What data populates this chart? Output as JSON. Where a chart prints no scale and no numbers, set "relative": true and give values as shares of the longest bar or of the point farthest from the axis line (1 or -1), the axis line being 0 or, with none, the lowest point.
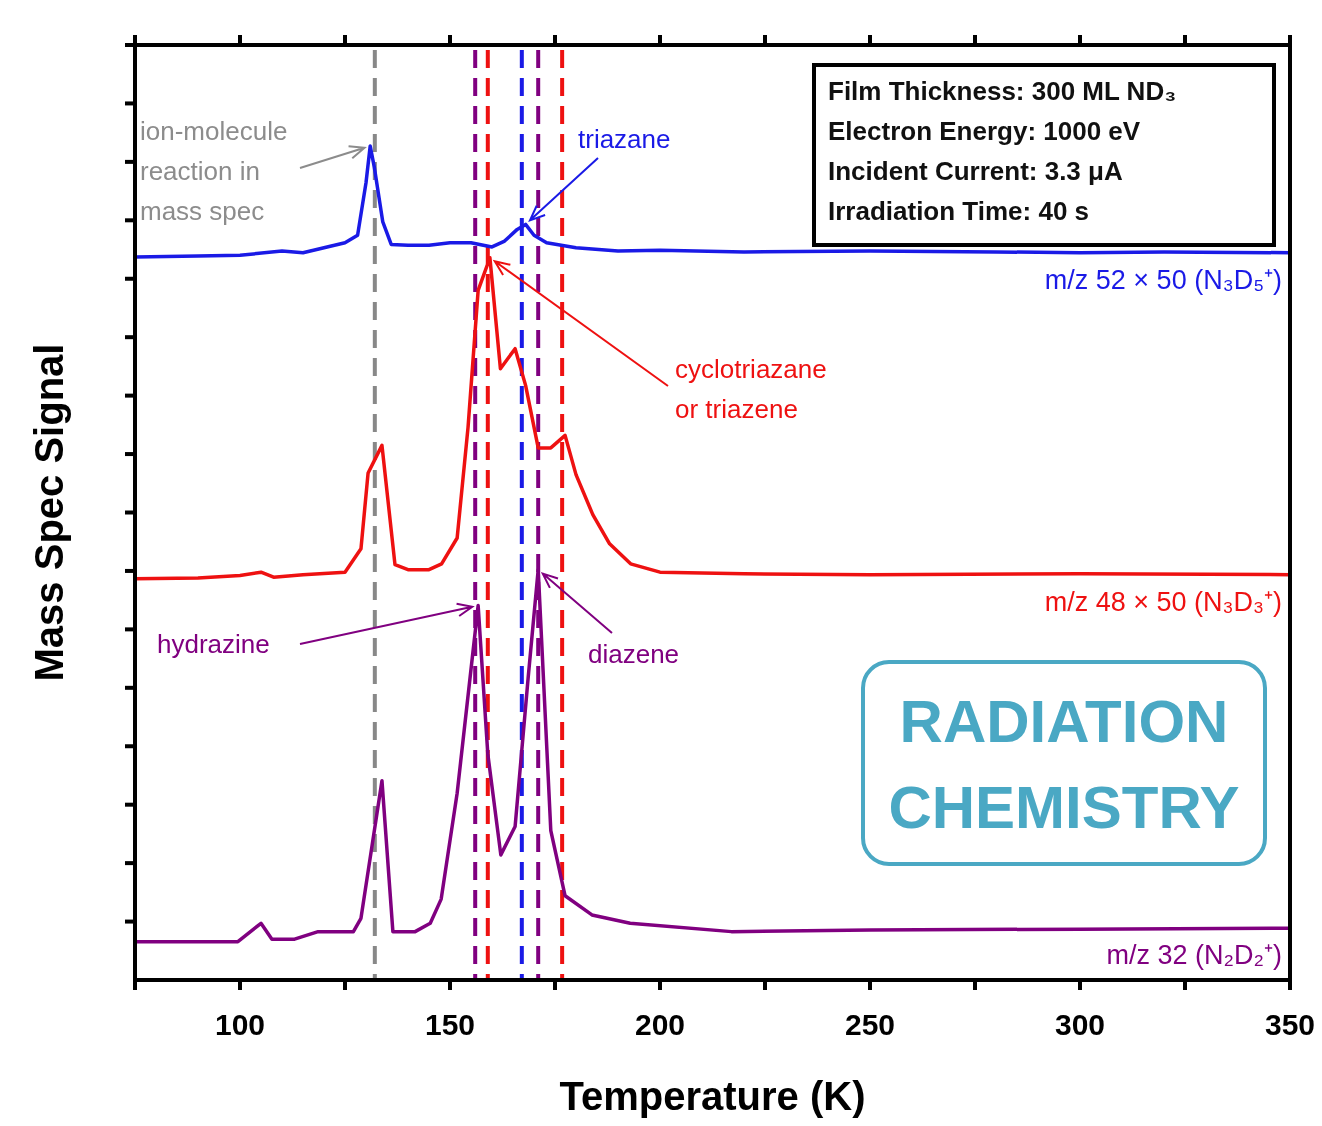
{
  "chart_data": {
    "type": "line",
    "xlabel": "Temperature (K)",
    "ylabel": "Mass Spec Signal",
    "relative": true,
    "xlim": [
      75,
      350
    ],
    "xticks": [
      {
        "value": 75,
        "label": null
      },
      100,
      {
        "value": 125,
        "label": null
      },
      150,
      {
        "value": 175,
        "label": null
      },
      200,
      {
        "value": 225,
        "label": null
      },
      250,
      {
        "value": 275,
        "label": null
      },
      300,
      {
        "value": 325,
        "label": null
      },
      350
    ],
    "tick_labels": "x",
    "grid": false,
    "line_style": "solid",
    "series": [
      {
        "name": "m/z 52 × 50 (N₃D₅⁺)",
        "color": "#1a1ae6",
        "x": [
          75,
          90,
          100,
          110,
          115,
          120,
          125,
          128,
          130,
          131,
          132,
          134,
          136,
          140,
          145,
          150,
          155,
          160,
          163,
          166,
          168,
          170,
          173,
          180,
          190,
          200,
          220,
          250,
          280,
          300,
          320,
          350
        ],
        "values": [
          0.867,
          0.868,
          0.869,
          0.874,
          0.872,
          0.878,
          0.884,
          0.893,
          0.956,
          1,
          0.974,
          0.909,
          0.882,
          0.881,
          0.881,
          0.884,
          0.884,
          0.879,
          0.886,
          0.9,
          0.906,
          0.893,
          0.884,
          0.878,
          0.874,
          0.875,
          0.873,
          0.874,
          0.873,
          0.872,
          0.873,
          0.872
        ]
      },
      {
        "name": "m/z 48 × 50 (N₃D₃⁺)",
        "color": "#ee1111",
        "x": [
          75,
          90,
          100,
          105,
          108,
          115,
          125,
          128.8,
          130.5,
          133.8,
          136.9,
          140,
          145,
          148,
          151.7,
          154.3,
          156.7,
          159.5,
          162,
          165.5,
          168,
          171,
          174,
          177.4,
          180,
          184,
          188,
          193,
          200,
          220,
          250,
          300,
          350
        ],
        "values": [
          0.481,
          0.482,
          0.485,
          0.489,
          0.483,
          0.486,
          0.489,
          0.517,
          0.608,
          0.641,
          0.498,
          0.492,
          0.492,
          0.499,
          0.53,
          0.663,
          0.827,
          0.866,
          0.733,
          0.757,
          0.713,
          0.638,
          0.638,
          0.653,
          0.606,
          0.558,
          0.523,
          0.499,
          0.489,
          0.487,
          0.486,
          0.487,
          0.486
        ]
      },
      {
        "name": "m/z 32 (N₂D₂⁺)",
        "color": "#800080",
        "x": [
          75,
          99.5,
          105,
          107.6,
          113,
          118.6,
          127,
          128.8,
          133.8,
          136.4,
          141.7,
          145.3,
          147.9,
          151.7,
          156.7,
          159,
          162.1,
          165.5,
          168.6,
          171,
          174,
          177.4,
          183.8,
          192.9,
          217,
          250,
          300,
          350
        ],
        "values": [
          0.046,
          0.046,
          0.068,
          0.049,
          0.049,
          0.058,
          0.058,
          0.074,
          0.239,
          0.058,
          0.058,
          0.068,
          0.097,
          0.224,
          0.449,
          0.271,
          0.15,
          0.184,
          0.362,
          0.492,
          0.179,
          0.101,
          0.078,
          0.068,
          0.058,
          0.06,
          0.061,
          0.062
        ]
      }
    ],
    "ref_lines": [
      {
        "axis": "x",
        "value": 132.1,
        "color": "#888888",
        "line_style": "dashed"
      },
      {
        "axis": "x",
        "value": 167.1,
        "color": "#1a1ae6",
        "line_style": "dashed"
      },
      {
        "axis": "x",
        "value": 159,
        "color": "#ee1111",
        "line_style": "dashed"
      },
      {
        "axis": "x",
        "value": 176.7,
        "color": "#ee1111",
        "line_style": "dashed"
      },
      {
        "axis": "x",
        "value": 156,
        "color": "#800080",
        "line_style": "dashed"
      },
      {
        "axis": "x",
        "value": 171,
        "color": "#800080",
        "line_style": "dashed"
      }
    ],
    "annotations": [
      {
        "text": "ion-molecule reaction in mass spec",
        "x": 131,
        "y": 1
      },
      {
        "text": "triazane",
        "x": 168,
        "y": 0.906
      },
      {
        "text": "cyclotriazane or triazene",
        "x": 159.5,
        "y": 0.866
      },
      {
        "text": "hydrazine",
        "x": 156.7,
        "y": 0.449
      },
      {
        "text": "diazene",
        "x": 171,
        "y": 0.492
      },
      "Film Thickness: 300 ML ND₃",
      "Electron Energy: 1000 eV",
      "Incident Current: 3.3 μA",
      "Irradiation Time: 40 s",
      "RADIATION CHEMISTRY"
    ]
  }
}
